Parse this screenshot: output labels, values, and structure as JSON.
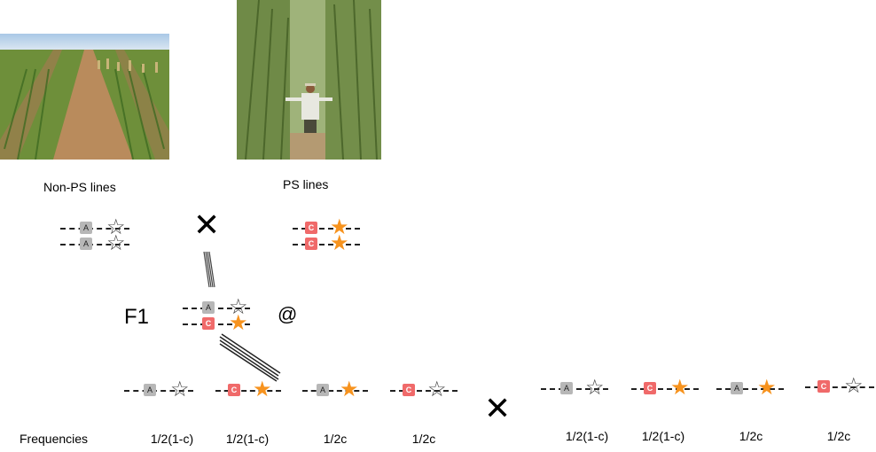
{
  "labels": {
    "non_ps": "Non-PS lines",
    "ps": "PS lines",
    "f1": "F1",
    "at_symbol": "@",
    "frequencies": "Frequencies",
    "cross_symbol": "✕"
  },
  "alleles": {
    "a": "A",
    "c": "C"
  },
  "gametes_left": [
    {
      "allele": "A",
      "star": "empty",
      "freq": "1/2(1-c)"
    },
    {
      "allele": "C",
      "star": "filled",
      "freq": "1/2(1-c)"
    },
    {
      "allele": "A",
      "star": "filled",
      "freq": "1/2c"
    },
    {
      "allele": "C",
      "star": "empty",
      "freq": "1/2c"
    }
  ],
  "gametes_right": [
    {
      "allele": "A",
      "star": "empty",
      "freq": "1/2(1-c)"
    },
    {
      "allele": "C",
      "star": "filled",
      "freq": "1/2(1-c)"
    },
    {
      "allele": "A",
      "star": "filled",
      "freq": "1/2c"
    },
    {
      "allele": "C",
      "star": "empty",
      "freq": "1/2c"
    }
  ],
  "colors": {
    "allele_a": "#b7b7b7",
    "allele_c": "#f06a6a",
    "star_filled": "#f7931e"
  }
}
